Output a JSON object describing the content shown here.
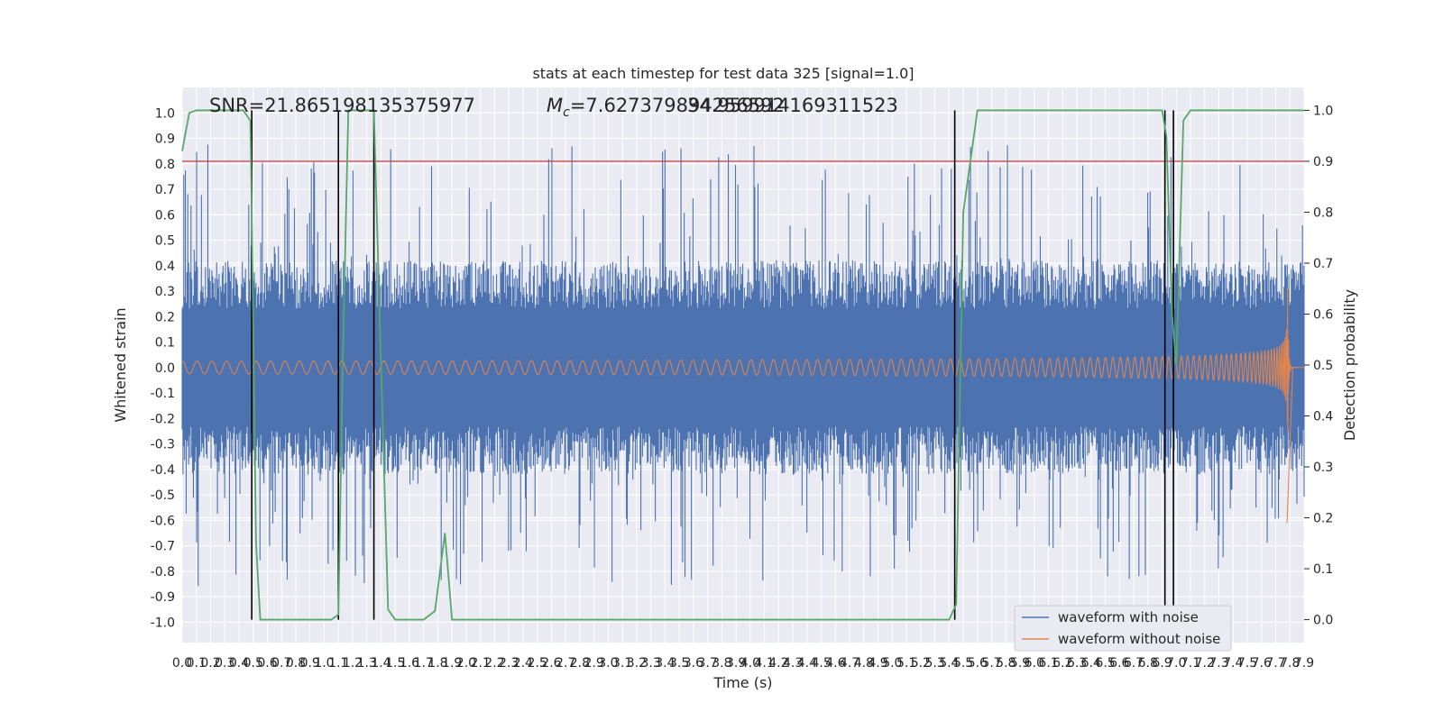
{
  "chart_data": {
    "type": "line",
    "title": "stats at each timestep for test data 325 [signal=1.0]",
    "xlabel": "Time (s)",
    "ylabel": "Whitened strain",
    "y2label": "Detection probability",
    "xlim": [
      0,
      7.9
    ],
    "ylim": [
      -1.08,
      1.1
    ],
    "y2lim": [
      -0.045,
      1.045
    ],
    "grid": true,
    "legend_position": "lower-right",
    "annotations": {
      "snr": "SNR=21.865198135375977",
      "mc": "M",
      "mc_sub": "c",
      "mc_value": "=7.627379894256592",
      "mc_overlap": "34.959914169311523"
    },
    "threshold": {
      "y2": 0.9,
      "color": "#c44e52"
    },
    "detection_markers_x": [
      0.49,
      1.1,
      1.35,
      5.44,
      6.92,
      6.98
    ],
    "series": [
      {
        "name": "waveform with noise",
        "color": "#4c72b0",
        "kind": "noise",
        "amplitude_p95": 0.42,
        "max": 0.99,
        "min": -0.97
      },
      {
        "name": "waveform without noise",
        "color": "#dd8452",
        "kind": "chirp",
        "merger_time": 7.78,
        "peak_pos": 0.59,
        "peak_neg": -0.61,
        "base_amplitude": 0.025
      },
      {
        "name": "Detection probability",
        "color": "#55a868",
        "axis": "y2",
        "x": [
          0,
          0.05,
          0.1,
          0.2,
          0.3,
          0.43,
          0.48,
          0.49,
          0.52,
          0.55,
          0.6,
          0.8,
          1.05,
          1.1,
          1.13,
          1.17,
          1.3,
          1.35,
          1.4,
          1.45,
          1.5,
          1.6,
          1.7,
          1.78,
          1.85,
          1.9,
          2.5,
          4.0,
          5.0,
          5.4,
          5.45,
          5.5,
          5.6,
          6.0,
          6.5,
          6.9,
          6.93,
          6.97,
          7.0,
          7.05,
          7.1,
          7.5,
          7.9
        ],
        "y": [
          0.92,
          0.995,
          1.0,
          1.0,
          1.0,
          1.0,
          0.98,
          0.8,
          0.15,
          0.0,
          0.0,
          0.0,
          0.0,
          0.01,
          0.5,
          1.0,
          1.0,
          1.0,
          0.5,
          0.02,
          0.0,
          0.0,
          0.0,
          0.017,
          0.17,
          0.0,
          0.0,
          0.0,
          0.0,
          0.0,
          0.03,
          0.8,
          1.0,
          1.0,
          1.0,
          1.0,
          0.95,
          0.6,
          0.5,
          0.98,
          1.0,
          1.0,
          1.0
        ]
      }
    ],
    "x_ticks": [
      "0.0",
      "0.1",
      "0.2",
      "0.3",
      "0.4",
      "0.5",
      "0.6",
      "0.7",
      "0.8",
      "0.9",
      "1.0",
      "1.1",
      "1.2",
      "1.3",
      "1.4",
      "1.5",
      "1.6",
      "1.7",
      "1.8",
      "1.9",
      "2.0",
      "2.1",
      "2.2",
      "2.3",
      "2.4",
      "2.5",
      "2.6",
      "2.7",
      "2.8",
      "2.9",
      "3.0",
      "3.1",
      "3.2",
      "3.3",
      "3.4",
      "3.5",
      "3.6",
      "3.7",
      "3.8",
      "3.9",
      "4.0",
      "4.1",
      "4.2",
      "4.3",
      "4.4",
      "4.5",
      "4.6",
      "4.7",
      "4.8",
      "4.9",
      "5.0",
      "5.1",
      "5.2",
      "5.3",
      "5.4",
      "5.5",
      "5.6",
      "5.7",
      "5.8",
      "5.9",
      "6.0",
      "6.1",
      "6.2",
      "6.3",
      "6.4",
      "6.5",
      "6.6",
      "6.7",
      "6.8",
      "6.9",
      "7.0",
      "7.1",
      "7.2",
      "7.3",
      "7.4",
      "7.5",
      "7.6",
      "7.7",
      "7.8",
      "7.9"
    ],
    "y_ticks": [
      "1.0",
      "0.9",
      "0.8",
      "0.7",
      "0.6",
      "0.5",
      "0.4",
      "0.3",
      "0.2",
      "0.1",
      "0.0",
      "-0.1",
      "-0.2",
      "-0.3",
      "-0.4",
      "-0.5",
      "-0.6",
      "-0.7",
      "-0.8",
      "-0.9",
      "-1.0"
    ],
    "y2_ticks": [
      "1.0",
      "0.9",
      "0.8",
      "0.7",
      "0.6",
      "0.5",
      "0.4",
      "0.3",
      "0.2",
      "0.1",
      "0.0"
    ]
  }
}
